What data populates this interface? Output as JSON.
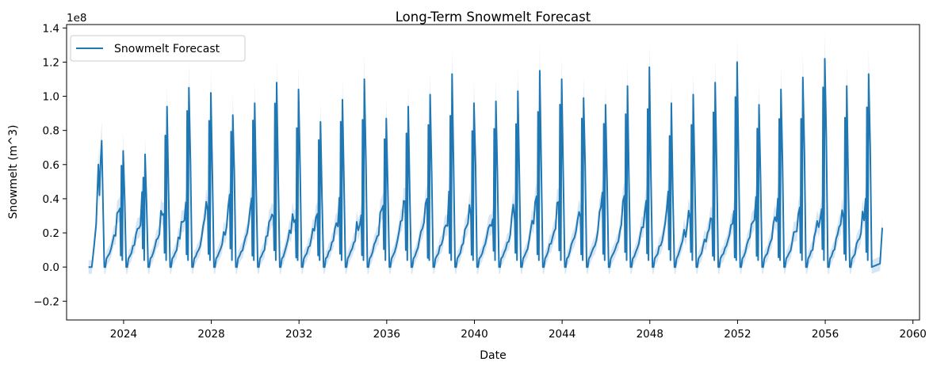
{
  "chart_data": {
    "type": "line",
    "title": "Long-Term Snowmelt Forecast",
    "xlabel": "Date",
    "ylabel": "Snowmelt (m^3)",
    "y_offset_label": "1e8",
    "xlim": [
      2021.4,
      2060.3
    ],
    "ylim": [
      -0.31,
      1.42
    ],
    "y_scale_exponent": 8,
    "xticks": [
      2024,
      2028,
      2032,
      2036,
      2040,
      2044,
      2048,
      2052,
      2056,
      2060
    ],
    "yticks": [
      -0.2,
      0.0,
      0.2,
      0.4,
      0.6,
      0.8,
      1.0,
      1.2,
      1.4
    ],
    "ytick_labels": [
      "−0.2",
      "0.0",
      "0.2",
      "0.4",
      "0.6",
      "0.8",
      "1.0",
      "1.2",
      "1.4"
    ],
    "grid": false,
    "legend": {
      "position": "upper-left",
      "entries": [
        "Snowmelt Forecast"
      ]
    },
    "line_color": "#1f77b4",
    "band_color": "#c6dbef",
    "series": [
      {
        "name": "Snowmelt Forecast",
        "x_start": 2022.4,
        "x_end": 2058.6,
        "pattern": "annual cycle: near zero Jul–Oct, rise through winter to a sharp spring peak, drop to zero",
        "annual_peaks": [
          [
            2023.0,
            0.74
          ],
          [
            2024.0,
            0.68
          ],
          [
            2025.0,
            0.66
          ],
          [
            2026.0,
            0.94
          ],
          [
            2027.0,
            1.05
          ],
          [
            2028.0,
            1.02
          ],
          [
            2029.0,
            0.89
          ],
          [
            2030.0,
            0.96
          ],
          [
            2031.0,
            1.08
          ],
          [
            2032.0,
            1.04
          ],
          [
            2033.0,
            0.85
          ],
          [
            2034.0,
            0.98
          ],
          [
            2035.0,
            1.1
          ],
          [
            2036.0,
            0.87
          ],
          [
            2037.0,
            0.94
          ],
          [
            2038.0,
            1.01
          ],
          [
            2039.0,
            1.13
          ],
          [
            2040.0,
            0.96
          ],
          [
            2041.0,
            0.97
          ],
          [
            2042.0,
            1.03
          ],
          [
            2043.0,
            1.15
          ],
          [
            2044.0,
            1.1
          ],
          [
            2045.0,
            0.99
          ],
          [
            2046.0,
            0.95
          ],
          [
            2047.0,
            1.06
          ],
          [
            2048.0,
            1.17
          ],
          [
            2049.0,
            0.96
          ],
          [
            2050.0,
            1.01
          ],
          [
            2051.0,
            1.08
          ],
          [
            2052.0,
            1.2
          ],
          [
            2053.0,
            0.95
          ],
          [
            2054.0,
            1.04
          ],
          [
            2055.0,
            1.11
          ],
          [
            2056.0,
            1.22
          ],
          [
            2057.0,
            1.06
          ],
          [
            2058.0,
            1.13
          ]
        ],
        "end_value": 0.23
      }
    ]
  }
}
